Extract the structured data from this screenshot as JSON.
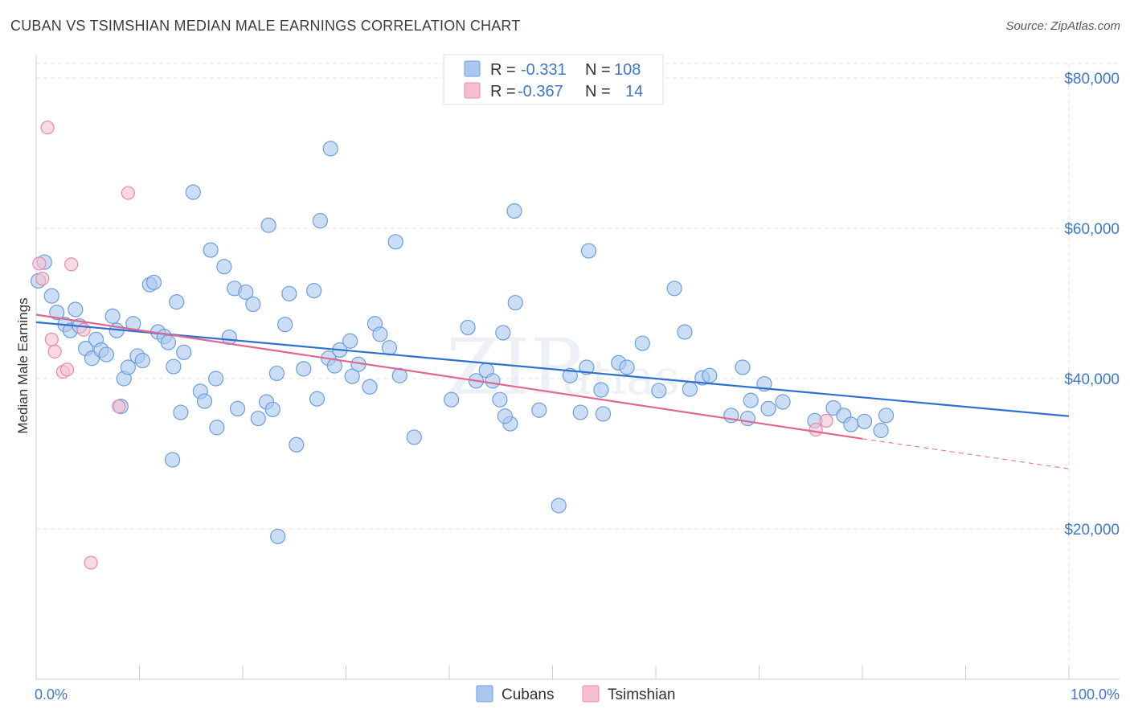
{
  "header": {
    "title": "CUBAN VS TSIMSHIAN MEDIAN MALE EARNINGS CORRELATION CHART",
    "source": "Source: ZipAtlas.com"
  },
  "watermark": {
    "zip": "ZIP",
    "atlas": "atlas"
  },
  "legend": {
    "rows": [
      {
        "r_label": "R =",
        "r_value": "-0.331",
        "n_label": "N =",
        "n_value": "108"
      },
      {
        "r_label": "R =",
        "r_value": "-0.367",
        "n_label": "N =",
        "n_value": "14"
      }
    ]
  },
  "bottom_legend": {
    "items": [
      "Cubans",
      "Tsimshian"
    ]
  },
  "colors": {
    "cubans_fill": "#aac8ef",
    "cubans_stroke": "#6b9edc",
    "cubans_line": "#2e6fcf",
    "tsimshian_fill": "#f6bfd0",
    "tsimshian_stroke": "#e58aa8",
    "tsimshian_line": "#e0678f",
    "grid": "#dfe3e8",
    "axis_label": "#3d78c9"
  },
  "chart_data": {
    "type": "scatter",
    "title": "CUBAN VS TSIMSHIAN MEDIAN MALE EARNINGS CORRELATION CHART",
    "xlabel": "",
    "ylabel": "Median Male Earnings",
    "x_tick_labels": [
      "0.0%",
      "100.0%"
    ],
    "y_tick_labels": [
      "$20,000",
      "$40,000",
      "$60,000",
      "$80,000"
    ],
    "y_ticks": [
      20000,
      40000,
      60000,
      80000
    ],
    "xlim": [
      0,
      100
    ],
    "ylim": [
      0,
      82000
    ],
    "grid": true,
    "legend_position": "top-center",
    "series": [
      {
        "name": "Cubans",
        "r": -0.331,
        "n": 108,
        "trend": {
          "x0": 0,
          "y0": 47500,
          "x1": 100,
          "y1": 35000
        },
        "points": [
          [
            0.2,
            53000
          ],
          [
            0.8,
            55500
          ],
          [
            1.5,
            51000
          ],
          [
            2.0,
            48800
          ],
          [
            2.8,
            47200
          ],
          [
            3.3,
            46400
          ],
          [
            3.8,
            49200
          ],
          [
            4.2,
            47000
          ],
          [
            4.8,
            44000
          ],
          [
            5.4,
            42700
          ],
          [
            5.8,
            45200
          ],
          [
            6.3,
            43800
          ],
          [
            6.8,
            43200
          ],
          [
            7.4,
            48300
          ],
          [
            7.8,
            46400
          ],
          [
            8.5,
            40000
          ],
          [
            8.9,
            41500
          ],
          [
            9.4,
            47300
          ],
          [
            9.8,
            43000
          ],
          [
            10.3,
            42400
          ],
          [
            11.0,
            52500
          ],
          [
            11.4,
            52800
          ],
          [
            11.8,
            46200
          ],
          [
            12.4,
            45600
          ],
          [
            12.8,
            44800
          ],
          [
            13.3,
            41600
          ],
          [
            13.6,
            50200
          ],
          [
            14.3,
            43500
          ],
          [
            14.0,
            35500
          ],
          [
            15.9,
            38300
          ],
          [
            16.3,
            37000
          ],
          [
            16.9,
            57100
          ],
          [
            17.4,
            40000
          ],
          [
            17.5,
            33500
          ],
          [
            18.2,
            54900
          ],
          [
            18.7,
            45500
          ],
          [
            19.2,
            52000
          ],
          [
            20.3,
            51500
          ],
          [
            19.5,
            36000
          ],
          [
            21.0,
            49900
          ],
          [
            21.5,
            34700
          ],
          [
            22.3,
            36900
          ],
          [
            22.9,
            35900
          ],
          [
            23.3,
            40700
          ],
          [
            24.1,
            47200
          ],
          [
            24.5,
            51300
          ],
          [
            25.2,
            31200
          ],
          [
            25.9,
            41300
          ],
          [
            26.9,
            51700
          ],
          [
            27.2,
            37300
          ],
          [
            28.3,
            42700
          ],
          [
            28.9,
            41700
          ],
          [
            29.4,
            43800
          ],
          [
            30.4,
            45000
          ],
          [
            31.2,
            41900
          ],
          [
            30.6,
            40300
          ],
          [
            32.3,
            38900
          ],
          [
            32.8,
            47300
          ],
          [
            33.3,
            45900
          ],
          [
            34.2,
            44100
          ],
          [
            35.2,
            40400
          ],
          [
            36.6,
            32200
          ],
          [
            40.2,
            37200
          ],
          [
            41.8,
            46800
          ],
          [
            42.6,
            39700
          ],
          [
            43.6,
            41100
          ],
          [
            44.2,
            39700
          ],
          [
            44.9,
            37200
          ],
          [
            45.2,
            46100
          ],
          [
            45.9,
            34000
          ],
          [
            45.4,
            35000
          ],
          [
            46.4,
            50100
          ],
          [
            48.7,
            35800
          ],
          [
            50.6,
            23100
          ],
          [
            51.7,
            40400
          ],
          [
            52.7,
            35500
          ],
          [
            53.3,
            41500
          ],
          [
            54.7,
            38500
          ],
          [
            54.9,
            35300
          ],
          [
            56.4,
            42100
          ],
          [
            57.2,
            41500
          ],
          [
            58.7,
            44700
          ],
          [
            60.3,
            38400
          ],
          [
            61.8,
            52000
          ],
          [
            62.8,
            46200
          ],
          [
            63.3,
            38600
          ],
          [
            64.5,
            40100
          ],
          [
            65.2,
            40400
          ],
          [
            67.3,
            35100
          ],
          [
            68.4,
            41500
          ],
          [
            69.2,
            37100
          ],
          [
            68.9,
            34700
          ],
          [
            70.9,
            36000
          ],
          [
            70.5,
            39300
          ],
          [
            72.3,
            36900
          ],
          [
            75.4,
            34400
          ],
          [
            77.2,
            36100
          ],
          [
            78.2,
            35100
          ],
          [
            78.9,
            33900
          ],
          [
            80.2,
            34300
          ],
          [
            81.8,
            33100
          ],
          [
            82.3,
            35100
          ],
          [
            27.5,
            61000
          ],
          [
            34.8,
            58200
          ],
          [
            22.5,
            60400
          ],
          [
            15.2,
            64800
          ],
          [
            28.5,
            70600
          ],
          [
            53.5,
            57000
          ],
          [
            46.3,
            62300
          ],
          [
            23.4,
            19000
          ],
          [
            13.2,
            29200
          ],
          [
            8.2,
            36300
          ]
        ]
      },
      {
        "name": "Tsimshian",
        "r": -0.367,
        "n": 14,
        "trend": {
          "x0": 0,
          "y0": 48500,
          "x1": 80,
          "y1": 32000,
          "dash_to_x": 100,
          "dash_to_y": 28000
        },
        "points": [
          [
            0.3,
            55300
          ],
          [
            0.6,
            53300
          ],
          [
            1.1,
            73400
          ],
          [
            1.5,
            45200
          ],
          [
            1.8,
            43600
          ],
          [
            2.6,
            40900
          ],
          [
            3.0,
            41200
          ],
          [
            3.4,
            55200
          ],
          [
            4.6,
            46500
          ],
          [
            8.0,
            36300
          ],
          [
            8.9,
            64700
          ],
          [
            5.3,
            15500
          ],
          [
            75.5,
            33200
          ],
          [
            76.5,
            34400
          ]
        ]
      }
    ]
  }
}
